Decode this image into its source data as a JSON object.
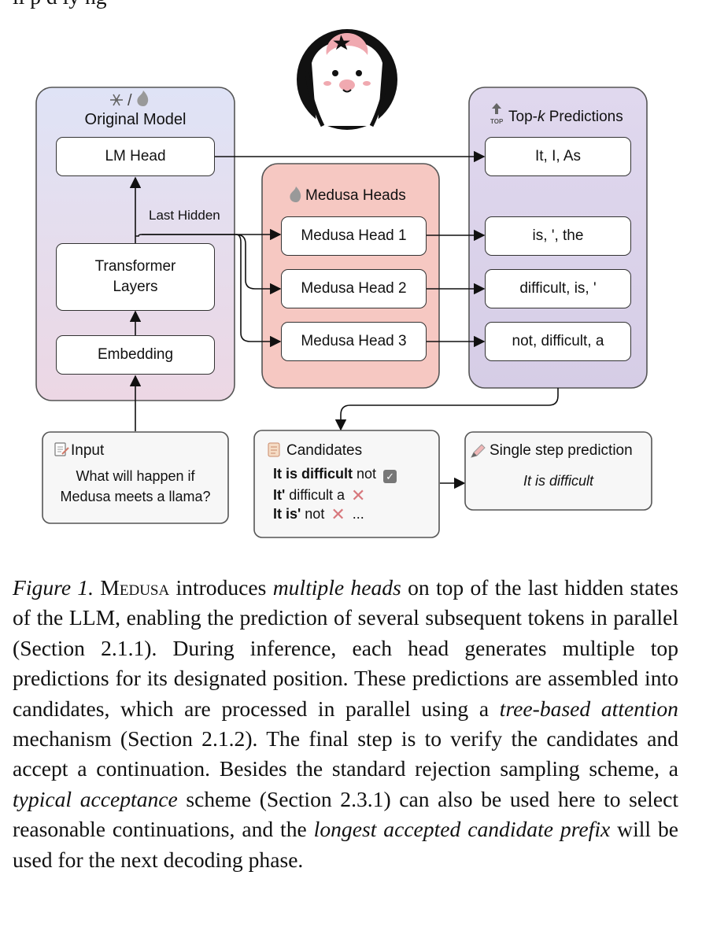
{
  "top_cut_text": "ll p d ly ng",
  "original_model": {
    "title": "Original Model",
    "lm_head": "LM Head",
    "transformer_line1": "Transformer",
    "transformer_line2": "Layers",
    "embedding": "Embedding",
    "last_hidden": "Last Hidden"
  },
  "medusa": {
    "title": "Medusa Heads",
    "heads": [
      "Medusa Head 1",
      "Medusa Head 2",
      "Medusa Head 3"
    ]
  },
  "topk": {
    "title_prefix": "Top-",
    "title_k": "k",
    "title_suffix": " Predictions",
    "top_icon_label": "TOP",
    "predictions": [
      "It, I, As",
      "is, ', the",
      "difficult, is, '",
      "not, difficult, a"
    ]
  },
  "input": {
    "title": "Input",
    "line1": "What will happen if",
    "line2": "Medusa meets a llama?"
  },
  "candidates": {
    "title": "Candidates",
    "rows": [
      {
        "bold": "It is difficult",
        "rest": " not",
        "mark": "✓"
      },
      {
        "bold": "It'",
        "rest": " difficult a",
        "mark": "✕"
      },
      {
        "bold": "It is'",
        "rest": " not",
        "mark": "✕",
        "tail": " ..."
      }
    ]
  },
  "single_step": {
    "title": "Single step prediction",
    "value": "It is difficult"
  },
  "caption": {
    "label": "Figure 1.",
    "name": "Medusa",
    "t1": " introduces ",
    "e1": "multiple heads",
    "t2": " on top of the last hidden states of the LLM, enabling the prediction of several subsequent tokens in parallel (Section 2.1.1). During inference, each head generates multiple top predictions for its designated position. These predictions are assembled into candidates, which are processed in parallel using a ",
    "e2": "tree-based attention",
    "t3": " mechanism (Section 2.1.2). The final step is to verify the candidates and accept a continuation. Besides the standard rejection sampling scheme, a ",
    "e3": "typical acceptance",
    "t4": " scheme (Section 2.3.1) can also be used here to select reasonable continuations, and the ",
    "e4": "longest accepted candidate prefix",
    "t5": " will be used for the next decoding phase."
  },
  "colors": {
    "original_bg_top": "#dfe3f6",
    "original_bg_bottom": "#ecd7e4",
    "medusa_bg": "#f6c8c2",
    "topk_bg": "#ddd6ec",
    "medusa_border": "#c97c76",
    "accent_pink": "#f0a9b0"
  }
}
